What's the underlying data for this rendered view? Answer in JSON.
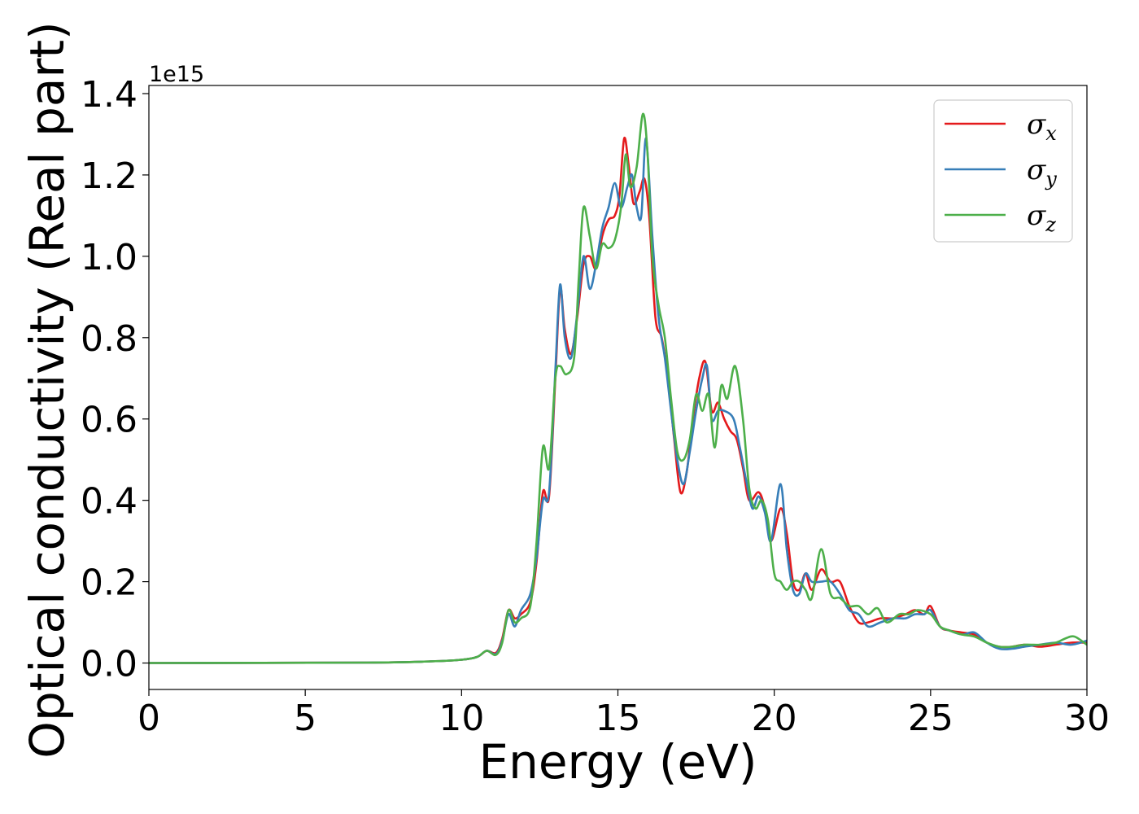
{
  "chart_data": {
    "type": "line",
    "title": "",
    "xlabel": "Energy (eV)",
    "ylabel": "Optical conductivity (Real part)",
    "y_offset_label": "1e15",
    "xlim": [
      0,
      30
    ],
    "ylim": [
      -0.065,
      1.42
    ],
    "x_ticks": [
      0,
      5,
      10,
      15,
      20,
      25,
      30
    ],
    "y_ticks": [
      0.0,
      0.2,
      0.4,
      0.6,
      0.8,
      1.0,
      1.2,
      1.4
    ],
    "x_tick_labels": [
      "0",
      "5",
      "10",
      "15",
      "20",
      "25",
      "30"
    ],
    "y_tick_labels": [
      "0.0",
      "0.2",
      "0.4",
      "0.6",
      "0.8",
      "1.0",
      "1.2",
      "1.4"
    ],
    "grid": false,
    "legend_position": "top-right",
    "series": [
      {
        "name": "σx",
        "symbol": "σ",
        "subscript": "x",
        "color": "#e41a1c",
        "points": [
          [
            0,
            0
          ],
          [
            7,
            0.001
          ],
          [
            9,
            0.004
          ],
          [
            10,
            0.008
          ],
          [
            10.5,
            0.015
          ],
          [
            10.8,
            0.03
          ],
          [
            11.1,
            0.025
          ],
          [
            11.3,
            0.06
          ],
          [
            11.5,
            0.13
          ],
          [
            11.7,
            0.11
          ],
          [
            11.9,
            0.12
          ],
          [
            12.2,
            0.15
          ],
          [
            12.4,
            0.25
          ],
          [
            12.6,
            0.42
          ],
          [
            12.8,
            0.41
          ],
          [
            13.0,
            0.7
          ],
          [
            13.15,
            0.92
          ],
          [
            13.3,
            0.82
          ],
          [
            13.5,
            0.76
          ],
          [
            13.7,
            0.85
          ],
          [
            13.9,
            0.98
          ],
          [
            14.1,
            1.0
          ],
          [
            14.3,
            0.97
          ],
          [
            14.5,
            1.05
          ],
          [
            14.7,
            1.09
          ],
          [
            14.9,
            1.1
          ],
          [
            15.05,
            1.15
          ],
          [
            15.2,
            1.29
          ],
          [
            15.35,
            1.22
          ],
          [
            15.5,
            1.13
          ],
          [
            15.7,
            1.16
          ],
          [
            15.85,
            1.19
          ],
          [
            16.0,
            1.1
          ],
          [
            16.2,
            0.85
          ],
          [
            16.4,
            0.8
          ],
          [
            16.6,
            0.7
          ],
          [
            16.8,
            0.55
          ],
          [
            17.0,
            0.42
          ],
          [
            17.2,
            0.47
          ],
          [
            17.4,
            0.6
          ],
          [
            17.6,
            0.7
          ],
          [
            17.8,
            0.74
          ],
          [
            18.0,
            0.62
          ],
          [
            18.2,
            0.64
          ],
          [
            18.4,
            0.6
          ],
          [
            18.6,
            0.57
          ],
          [
            18.8,
            0.55
          ],
          [
            19.0,
            0.48
          ],
          [
            19.2,
            0.4
          ],
          [
            19.5,
            0.42
          ],
          [
            19.7,
            0.38
          ],
          [
            19.9,
            0.3
          ],
          [
            20.2,
            0.38
          ],
          [
            20.4,
            0.32
          ],
          [
            20.6,
            0.2
          ],
          [
            20.8,
            0.18
          ],
          [
            21.0,
            0.22
          ],
          [
            21.2,
            0.18
          ],
          [
            21.5,
            0.23
          ],
          [
            21.8,
            0.2
          ],
          [
            22.1,
            0.2
          ],
          [
            22.4,
            0.14
          ],
          [
            22.7,
            0.1
          ],
          [
            23.0,
            0.1
          ],
          [
            23.4,
            0.11
          ],
          [
            23.8,
            0.11
          ],
          [
            24.2,
            0.12
          ],
          [
            24.5,
            0.13
          ],
          [
            24.8,
            0.12
          ],
          [
            25.0,
            0.14
          ],
          [
            25.3,
            0.09
          ],
          [
            25.6,
            0.08
          ],
          [
            26.0,
            0.075
          ],
          [
            26.4,
            0.07
          ],
          [
            26.8,
            0.05
          ],
          [
            27.2,
            0.04
          ],
          [
            27.6,
            0.04
          ],
          [
            28.0,
            0.045
          ],
          [
            28.5,
            0.04
          ],
          [
            29.0,
            0.045
          ],
          [
            29.5,
            0.05
          ],
          [
            30,
            0.05
          ]
        ]
      },
      {
        "name": "σy",
        "symbol": "σ",
        "subscript": "y",
        "color": "#377eb8",
        "points": [
          [
            0,
            0
          ],
          [
            7,
            0.001
          ],
          [
            9,
            0.004
          ],
          [
            10,
            0.008
          ],
          [
            10.5,
            0.015
          ],
          [
            10.8,
            0.03
          ],
          [
            11.1,
            0.022
          ],
          [
            11.3,
            0.055
          ],
          [
            11.5,
            0.12
          ],
          [
            11.7,
            0.09
          ],
          [
            11.9,
            0.13
          ],
          [
            12.2,
            0.17
          ],
          [
            12.4,
            0.26
          ],
          [
            12.6,
            0.4
          ],
          [
            12.8,
            0.42
          ],
          [
            13.0,
            0.72
          ],
          [
            13.15,
            0.93
          ],
          [
            13.3,
            0.8
          ],
          [
            13.5,
            0.75
          ],
          [
            13.7,
            0.86
          ],
          [
            13.9,
            1.0
          ],
          [
            14.1,
            0.92
          ],
          [
            14.3,
            0.98
          ],
          [
            14.5,
            1.07
          ],
          [
            14.7,
            1.12
          ],
          [
            14.9,
            1.18
          ],
          [
            15.1,
            1.12
          ],
          [
            15.3,
            1.17
          ],
          [
            15.45,
            1.2
          ],
          [
            15.6,
            1.12
          ],
          [
            15.75,
            1.1
          ],
          [
            15.9,
            1.29
          ],
          [
            16.1,
            1.05
          ],
          [
            16.3,
            0.85
          ],
          [
            16.5,
            0.75
          ],
          [
            16.7,
            0.62
          ],
          [
            16.9,
            0.5
          ],
          [
            17.1,
            0.44
          ],
          [
            17.3,
            0.52
          ],
          [
            17.5,
            0.62
          ],
          [
            17.7,
            0.7
          ],
          [
            17.85,
            0.73
          ],
          [
            18.0,
            0.6
          ],
          [
            18.2,
            0.62
          ],
          [
            18.4,
            0.62
          ],
          [
            18.7,
            0.6
          ],
          [
            18.9,
            0.53
          ],
          [
            19.1,
            0.45
          ],
          [
            19.3,
            0.38
          ],
          [
            19.5,
            0.41
          ],
          [
            19.7,
            0.37
          ],
          [
            19.9,
            0.3
          ],
          [
            20.2,
            0.44
          ],
          [
            20.4,
            0.28
          ],
          [
            20.6,
            0.18
          ],
          [
            20.8,
            0.17
          ],
          [
            21.0,
            0.22
          ],
          [
            21.2,
            0.2
          ],
          [
            21.5,
            0.2
          ],
          [
            21.8,
            0.2
          ],
          [
            22.1,
            0.17
          ],
          [
            22.4,
            0.13
          ],
          [
            22.7,
            0.12
          ],
          [
            23.0,
            0.09
          ],
          [
            23.4,
            0.1
          ],
          [
            23.8,
            0.11
          ],
          [
            24.2,
            0.11
          ],
          [
            24.5,
            0.12
          ],
          [
            24.8,
            0.12
          ],
          [
            25.0,
            0.13
          ],
          [
            25.3,
            0.09
          ],
          [
            25.6,
            0.08
          ],
          [
            26.0,
            0.07
          ],
          [
            26.4,
            0.075
          ],
          [
            26.8,
            0.05
          ],
          [
            27.2,
            0.035
          ],
          [
            27.6,
            0.035
          ],
          [
            28.0,
            0.04
          ],
          [
            28.5,
            0.045
          ],
          [
            29.0,
            0.05
          ],
          [
            29.5,
            0.045
          ],
          [
            30,
            0.055
          ]
        ]
      },
      {
        "name": "σz",
        "symbol": "σ",
        "subscript": "z",
        "color": "#4daf4a",
        "points": [
          [
            0,
            0
          ],
          [
            7,
            0.001
          ],
          [
            9,
            0.004
          ],
          [
            10,
            0.008
          ],
          [
            10.5,
            0.015
          ],
          [
            10.8,
            0.03
          ],
          [
            11.1,
            0.02
          ],
          [
            11.3,
            0.05
          ],
          [
            11.5,
            0.13
          ],
          [
            11.7,
            0.1
          ],
          [
            11.9,
            0.11
          ],
          [
            12.2,
            0.14
          ],
          [
            12.4,
            0.3
          ],
          [
            12.6,
            0.53
          ],
          [
            12.8,
            0.48
          ],
          [
            13.0,
            0.7
          ],
          [
            13.15,
            0.73
          ],
          [
            13.35,
            0.71
          ],
          [
            13.6,
            0.75
          ],
          [
            13.75,
            0.95
          ],
          [
            13.9,
            1.12
          ],
          [
            14.1,
            1.05
          ],
          [
            14.3,
            0.97
          ],
          [
            14.5,
            1.03
          ],
          [
            14.7,
            1.02
          ],
          [
            14.9,
            1.04
          ],
          [
            15.1,
            1.12
          ],
          [
            15.25,
            1.25
          ],
          [
            15.4,
            1.17
          ],
          [
            15.6,
            1.22
          ],
          [
            15.8,
            1.35
          ],
          [
            15.95,
            1.25
          ],
          [
            16.1,
            1.0
          ],
          [
            16.3,
            0.88
          ],
          [
            16.5,
            0.8
          ],
          [
            16.7,
            0.65
          ],
          [
            16.9,
            0.52
          ],
          [
            17.1,
            0.5
          ],
          [
            17.3,
            0.55
          ],
          [
            17.5,
            0.66
          ],
          [
            17.7,
            0.62
          ],
          [
            17.9,
            0.66
          ],
          [
            18.1,
            0.53
          ],
          [
            18.3,
            0.68
          ],
          [
            18.5,
            0.65
          ],
          [
            18.75,
            0.73
          ],
          [
            19.0,
            0.6
          ],
          [
            19.2,
            0.43
          ],
          [
            19.4,
            0.38
          ],
          [
            19.6,
            0.4
          ],
          [
            19.8,
            0.35
          ],
          [
            20.0,
            0.22
          ],
          [
            20.2,
            0.2
          ],
          [
            20.4,
            0.18
          ],
          [
            20.6,
            0.2
          ],
          [
            20.8,
            0.2
          ],
          [
            21.0,
            0.18
          ],
          [
            21.2,
            0.16
          ],
          [
            21.5,
            0.28
          ],
          [
            21.8,
            0.17
          ],
          [
            22.1,
            0.16
          ],
          [
            22.4,
            0.14
          ],
          [
            22.7,
            0.14
          ],
          [
            23.0,
            0.12
          ],
          [
            23.3,
            0.135
          ],
          [
            23.6,
            0.1
          ],
          [
            24.0,
            0.12
          ],
          [
            24.3,
            0.12
          ],
          [
            24.6,
            0.13
          ],
          [
            25.0,
            0.12
          ],
          [
            25.3,
            0.09
          ],
          [
            25.6,
            0.08
          ],
          [
            26.0,
            0.07
          ],
          [
            26.4,
            0.065
          ],
          [
            26.8,
            0.05
          ],
          [
            27.2,
            0.04
          ],
          [
            27.6,
            0.04
          ],
          [
            28.0,
            0.045
          ],
          [
            28.5,
            0.045
          ],
          [
            29.0,
            0.05
          ],
          [
            29.3,
            0.06
          ],
          [
            29.6,
            0.065
          ],
          [
            30,
            0.045
          ]
        ]
      }
    ]
  }
}
